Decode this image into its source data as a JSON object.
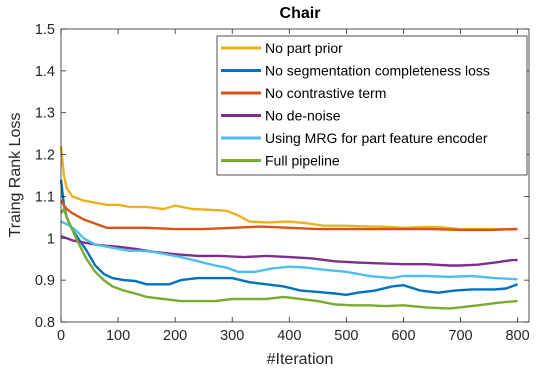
{
  "chart_data": {
    "type": "line",
    "title": "Chair",
    "xlabel": "#Iteration",
    "ylabel": "Traing Rank Loss",
    "xlim": [
      0,
      820
    ],
    "ylim": [
      0.8,
      1.5
    ],
    "xticks": [
      0,
      100,
      200,
      300,
      400,
      500,
      600,
      700,
      800
    ],
    "yticks": [
      0.8,
      0.9,
      1.0,
      1.1,
      1.2,
      1.3,
      1.4,
      1.5
    ],
    "xtick_labels": [
      "0",
      "100",
      "200",
      "300",
      "400",
      "500",
      "600",
      "700",
      "800"
    ],
    "ytick_labels": [
      "0.8",
      "0.9",
      "1",
      "1.1",
      "1.2",
      "1.3",
      "1.4",
      "1.5"
    ],
    "grid": false,
    "legend_position": "top-right",
    "series": [
      {
        "name": "No part prior",
        "color": "#EDB120",
        "points": [
          [
            0,
            1.22
          ],
          [
            5,
            1.15
          ],
          [
            10,
            1.12
          ],
          [
            20,
            1.1
          ],
          [
            40,
            1.09
          ],
          [
            60,
            1.085
          ],
          [
            80,
            1.08
          ],
          [
            100,
            1.08
          ],
          [
            120,
            1.075
          ],
          [
            150,
            1.075
          ],
          [
            180,
            1.07
          ],
          [
            200,
            1.078
          ],
          [
            230,
            1.07
          ],
          [
            260,
            1.068
          ],
          [
            290,
            1.066
          ],
          [
            310,
            1.055
          ],
          [
            330,
            1.04
          ],
          [
            360,
            1.038
          ],
          [
            400,
            1.04
          ],
          [
            430,
            1.036
          ],
          [
            460,
            1.03
          ],
          [
            500,
            1.03
          ],
          [
            540,
            1.028
          ],
          [
            560,
            1.028
          ],
          [
            600,
            1.025
          ],
          [
            640,
            1.027
          ],
          [
            670,
            1.026
          ],
          [
            700,
            1.022
          ],
          [
            740,
            1.022
          ],
          [
            780,
            1.022
          ],
          [
            800,
            1.022
          ]
        ]
      },
      {
        "name": "No segmentation completeness loss",
        "color": "#0072BD",
        "points": [
          [
            0,
            1.14
          ],
          [
            5,
            1.08
          ],
          [
            10,
            1.05
          ],
          [
            20,
            1.02
          ],
          [
            30,
            1.0
          ],
          [
            45,
            0.97
          ],
          [
            60,
            0.935
          ],
          [
            75,
            0.915
          ],
          [
            90,
            0.905
          ],
          [
            110,
            0.9
          ],
          [
            130,
            0.898
          ],
          [
            150,
            0.89
          ],
          [
            170,
            0.89
          ],
          [
            190,
            0.89
          ],
          [
            210,
            0.9
          ],
          [
            240,
            0.905
          ],
          [
            270,
            0.905
          ],
          [
            300,
            0.905
          ],
          [
            330,
            0.895
          ],
          [
            360,
            0.89
          ],
          [
            390,
            0.885
          ],
          [
            420,
            0.875
          ],
          [
            450,
            0.872
          ],
          [
            480,
            0.868
          ],
          [
            500,
            0.865
          ],
          [
            520,
            0.87
          ],
          [
            550,
            0.875
          ],
          [
            580,
            0.885
          ],
          [
            600,
            0.888
          ],
          [
            630,
            0.875
          ],
          [
            660,
            0.87
          ],
          [
            690,
            0.875
          ],
          [
            720,
            0.878
          ],
          [
            760,
            0.878
          ],
          [
            780,
            0.88
          ],
          [
            790,
            0.885
          ],
          [
            800,
            0.89
          ]
        ]
      },
      {
        "name": "No contrastive term",
        "color": "#D95319",
        "points": [
          [
            0,
            1.09
          ],
          [
            10,
            1.07
          ],
          [
            20,
            1.06
          ],
          [
            40,
            1.045
          ],
          [
            60,
            1.035
          ],
          [
            80,
            1.025
          ],
          [
            100,
            1.025
          ],
          [
            150,
            1.025
          ],
          [
            200,
            1.022
          ],
          [
            250,
            1.022
          ],
          [
            300,
            1.025
          ],
          [
            350,
            1.028
          ],
          [
            400,
            1.025
          ],
          [
            450,
            1.022
          ],
          [
            500,
            1.022
          ],
          [
            550,
            1.022
          ],
          [
            600,
            1.022
          ],
          [
            650,
            1.022
          ],
          [
            700,
            1.02
          ],
          [
            750,
            1.02
          ],
          [
            800,
            1.022
          ]
        ]
      },
      {
        "name": "No de-noise",
        "color": "#7E2F8E",
        "points": [
          [
            0,
            1.005
          ],
          [
            10,
            1.0
          ],
          [
            20,
            0.995
          ],
          [
            40,
            0.99
          ],
          [
            60,
            0.985
          ],
          [
            80,
            0.982
          ],
          [
            100,
            0.98
          ],
          [
            130,
            0.975
          ],
          [
            160,
            0.968
          ],
          [
            200,
            0.962
          ],
          [
            240,
            0.958
          ],
          [
            280,
            0.958
          ],
          [
            320,
            0.955
          ],
          [
            360,
            0.958
          ],
          [
            400,
            0.955
          ],
          [
            440,
            0.952
          ],
          [
            480,
            0.945
          ],
          [
            520,
            0.942
          ],
          [
            560,
            0.94
          ],
          [
            600,
            0.938
          ],
          [
            640,
            0.938
          ],
          [
            680,
            0.935
          ],
          [
            700,
            0.935
          ],
          [
            730,
            0.937
          ],
          [
            760,
            0.942
          ],
          [
            790,
            0.948
          ],
          [
            800,
            0.948
          ]
        ]
      },
      {
        "name": "Using MRG for part feature encoder",
        "color": "#4DBEEE",
        "points": [
          [
            0,
            1.04
          ],
          [
            8,
            1.035
          ],
          [
            15,
            1.03
          ],
          [
            25,
            1.02
          ],
          [
            40,
            1.0
          ],
          [
            60,
            0.985
          ],
          [
            80,
            0.98
          ],
          [
            100,
            0.975
          ],
          [
            120,
            0.97
          ],
          [
            140,
            0.97
          ],
          [
            160,
            0.968
          ],
          [
            190,
            0.96
          ],
          [
            210,
            0.955
          ],
          [
            240,
            0.945
          ],
          [
            270,
            0.935
          ],
          [
            290,
            0.93
          ],
          [
            310,
            0.92
          ],
          [
            340,
            0.92
          ],
          [
            370,
            0.928
          ],
          [
            400,
            0.932
          ],
          [
            430,
            0.93
          ],
          [
            460,
            0.925
          ],
          [
            500,
            0.92
          ],
          [
            540,
            0.91
          ],
          [
            580,
            0.905
          ],
          [
            600,
            0.91
          ],
          [
            640,
            0.91
          ],
          [
            680,
            0.908
          ],
          [
            720,
            0.91
          ],
          [
            760,
            0.905
          ],
          [
            800,
            0.902
          ]
        ]
      },
      {
        "name": "Full pipeline",
        "color": "#77AC30",
        "points": [
          [
            0,
            1.06
          ],
          [
            5,
            1.07
          ],
          [
            10,
            1.05
          ],
          [
            20,
            1.02
          ],
          [
            30,
            0.99
          ],
          [
            45,
            0.95
          ],
          [
            60,
            0.92
          ],
          [
            75,
            0.9
          ],
          [
            90,
            0.885
          ],
          [
            110,
            0.875
          ],
          [
            130,
            0.868
          ],
          [
            150,
            0.86
          ],
          [
            180,
            0.855
          ],
          [
            210,
            0.85
          ],
          [
            240,
            0.85
          ],
          [
            270,
            0.85
          ],
          [
            300,
            0.855
          ],
          [
            330,
            0.855
          ],
          [
            360,
            0.855
          ],
          [
            390,
            0.86
          ],
          [
            420,
            0.855
          ],
          [
            450,
            0.85
          ],
          [
            480,
            0.842
          ],
          [
            510,
            0.84
          ],
          [
            540,
            0.84
          ],
          [
            570,
            0.838
          ],
          [
            600,
            0.84
          ],
          [
            640,
            0.835
          ],
          [
            680,
            0.832
          ],
          [
            720,
            0.838
          ],
          [
            760,
            0.845
          ],
          [
            780,
            0.848
          ],
          [
            800,
            0.85
          ]
        ]
      }
    ]
  }
}
